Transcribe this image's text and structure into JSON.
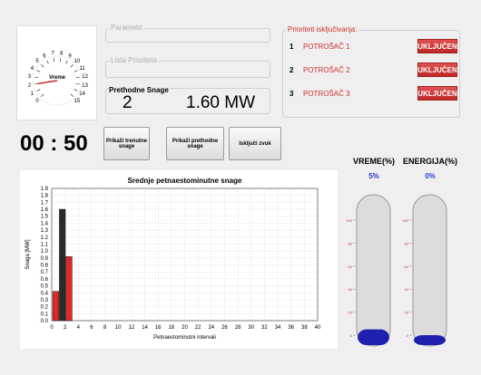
{
  "gauge": {
    "label": "Vreme",
    "value": 2,
    "range": [
      0,
      15
    ],
    "ticks": [
      0,
      1,
      2,
      3,
      4,
      5,
      6,
      7,
      8,
      9,
      10,
      11,
      12,
      13,
      14,
      15
    ]
  },
  "parametri": "Parametri",
  "lista": "Lista Prioriteta",
  "prethodne": {
    "title": "Prethodne Snage",
    "index": "2",
    "power": "1.60 MW"
  },
  "priorities": {
    "title": "Prioriteti isključivanja:",
    "rows": [
      {
        "rank": "1",
        "name": "POTROŠAČ 1",
        "button": "UKLJUČEN"
      },
      {
        "rank": "2",
        "name": "POTROŠAČ 2",
        "button": "UKLJUČEN"
      },
      {
        "rank": "3",
        "name": "POTROŠAČ 3",
        "button": "UKLJUČEN"
      }
    ]
  },
  "timer": "00 : 50",
  "buttons": [
    "Prikaži trenutne snage",
    "Prikaži prethodne snage",
    "Isključi zvuk"
  ],
  "chart_data": {
    "type": "bar",
    "title": "Srednje petnaestominutne snage",
    "x_label": "Petnaestominutni intervali",
    "y_label": "Snaga [MW]",
    "xlim": [
      0,
      40
    ],
    "xticks": [
      0,
      2,
      4,
      6,
      8,
      10,
      12,
      14,
      16,
      18,
      20,
      22,
      24,
      26,
      28,
      30,
      32,
      34,
      36,
      38,
      40
    ],
    "ylim": [
      0,
      1.9
    ],
    "yticks": [
      {
        "value": 0,
        "label": "0.0"
      },
      0.1,
      0.2,
      0.3,
      0.4,
      0.5,
      0.6,
      0.7,
      0.8,
      0.9,
      {
        "value": 1,
        "label": "1.0"
      },
      1.1,
      1.2,
      1.3,
      1.4,
      1.5,
      1.6,
      1.7,
      1.8,
      1.9
    ],
    "grid": true,
    "series": [
      {
        "color": "#e02828",
        "x": [
          0.6,
          2.6
        ],
        "values": [
          0.42,
          0.92
        ]
      },
      {
        "color": "#2a2a2a",
        "x": [
          1.6
        ],
        "values": [
          1.6
        ]
      }
    ]
  },
  "meters": [
    {
      "title": "VREME(%)",
      "value": 5,
      "value_label": "5%",
      "ylim": [
        0,
        100
      ],
      "yticks": [
        0,
        20,
        40,
        60,
        80,
        100
      ]
    },
    {
      "title": "ENERGIJA(%)",
      "value": 0,
      "value_label": "0%",
      "ylim": [
        0,
        100
      ],
      "yticks": [
        0,
        20,
        40,
        60,
        80,
        100
      ]
    }
  ]
}
